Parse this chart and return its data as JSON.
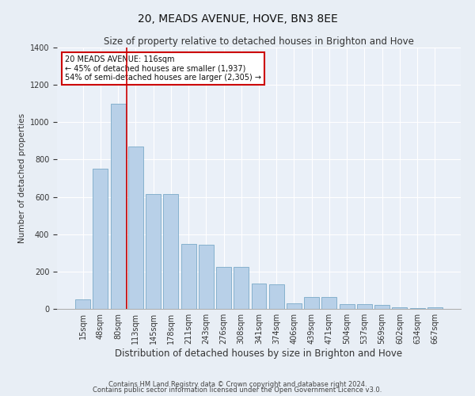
{
  "title": "20, MEADS AVENUE, HOVE, BN3 8EE",
  "subtitle": "Size of property relative to detached houses in Brighton and Hove",
  "xlabel": "Distribution of detached houses by size in Brighton and Hove",
  "ylabel": "Number of detached properties",
  "categories": [
    "15sqm",
    "48sqm",
    "80sqm",
    "113sqm",
    "145sqm",
    "178sqm",
    "211sqm",
    "243sqm",
    "276sqm",
    "308sqm",
    "341sqm",
    "374sqm",
    "406sqm",
    "439sqm",
    "471sqm",
    "504sqm",
    "537sqm",
    "569sqm",
    "602sqm",
    "634sqm",
    "667sqm"
  ],
  "values": [
    50,
    750,
    1100,
    870,
    615,
    615,
    350,
    345,
    225,
    225,
    135,
    130,
    30,
    65,
    65,
    25,
    25,
    20,
    10,
    5,
    10
  ],
  "bar_color": "#b8d0e8",
  "bar_edge_color": "#7aaac8",
  "annotation_text": "20 MEADS AVENUE: 116sqm\n← 45% of detached houses are smaller (1,937)\n54% of semi-detached houses are larger (2,305) →",
  "annotation_box_color": "#ffffff",
  "annotation_box_edge": "#cc0000",
  "vline_x": 2.5,
  "vline_color": "#cc0000",
  "ylim": [
    0,
    1400
  ],
  "yticks": [
    0,
    200,
    400,
    600,
    800,
    1000,
    1200,
    1400
  ],
  "footer1": "Contains HM Land Registry data © Crown copyright and database right 2024.",
  "footer2": "Contains public sector information licensed under the Open Government Licence v3.0.",
  "bg_color": "#e8eef5",
  "plot_bg_color": "#eaf0f8",
  "title_fontsize": 10,
  "subtitle_fontsize": 8.5,
  "tick_fontsize": 7,
  "ylabel_fontsize": 7.5,
  "xlabel_fontsize": 8.5,
  "footer_fontsize": 6.0
}
